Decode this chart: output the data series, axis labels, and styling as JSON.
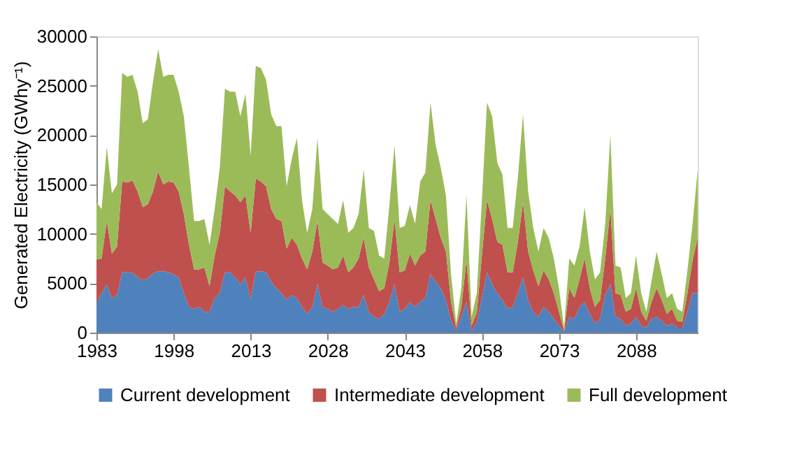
{
  "chart_data": {
    "type": "area",
    "stacked": true,
    "ylabel": "Generated Electricity (GWhy⁻¹)",
    "x": [
      1983,
      1984,
      1985,
      1986,
      1987,
      1988,
      1989,
      1990,
      1991,
      1992,
      1993,
      1994,
      1995,
      1996,
      1997,
      1998,
      1999,
      2000,
      2001,
      2002,
      2003,
      2004,
      2005,
      2006,
      2007,
      2008,
      2009,
      2010,
      2011,
      2012,
      2013,
      2014,
      2015,
      2016,
      2017,
      2018,
      2019,
      2020,
      2021,
      2022,
      2023,
      2024,
      2025,
      2026,
      2027,
      2028,
      2029,
      2030,
      2031,
      2032,
      2033,
      2034,
      2035,
      2036,
      2037,
      2038,
      2039,
      2040,
      2041,
      2042,
      2043,
      2044,
      2045,
      2046,
      2047,
      2048,
      2049,
      2050,
      2051,
      2052,
      2053,
      2054,
      2055,
      2056,
      2057,
      2058,
      2059,
      2060,
      2061,
      2062,
      2063,
      2064,
      2065,
      2066,
      2067,
      2068,
      2069,
      2070,
      2071,
      2072,
      2073,
      2074,
      2075,
      2076,
      2077,
      2078,
      2079,
      2080,
      2081,
      2082,
      2083,
      2084,
      2085,
      2086,
      2087,
      2088,
      2089,
      2090,
      2091,
      2092,
      2093,
      2094,
      2095,
      2096,
      2097,
      2098,
      2099,
      2100
    ],
    "series": [
      {
        "name": "Current development",
        "color": "#4f81bd",
        "values": [
          3000,
          4000,
          4900,
          3500,
          3800,
          6100,
          6100,
          6100,
          5600,
          5300,
          5500,
          6000,
          6200,
          6200,
          6100,
          5900,
          5600,
          4000,
          2600,
          2400,
          2600,
          2100,
          2100,
          3500,
          4000,
          6100,
          6100,
          5600,
          4900,
          5600,
          3300,
          6200,
          6200,
          6100,
          5200,
          4500,
          4000,
          3300,
          3800,
          3500,
          2600,
          1900,
          2600,
          4900,
          2600,
          2400,
          2100,
          2400,
          2800,
          2400,
          2600,
          2600,
          3800,
          2100,
          1600,
          1400,
          1900,
          3100,
          4900,
          2100,
          2400,
          3100,
          2600,
          3100,
          3500,
          5900,
          5200,
          4500,
          3300,
          1200,
          200,
          1600,
          3100,
          200,
          1000,
          3500,
          6100,
          4900,
          4000,
          3300,
          2400,
          2600,
          4000,
          5600,
          3300,
          2100,
          1600,
          2600,
          2100,
          1400,
          700,
          100,
          1600,
          1400,
          2600,
          3100,
          1900,
          900,
          1400,
          3800,
          4900,
          1600,
          1400,
          700,
          900,
          1600,
          700,
          500,
          1400,
          1600,
          1200,
          700,
          900,
          500,
          500,
          2100,
          4000,
          4000
        ]
      },
      {
        "name": "Intermediate development",
        "color": "#c0504d",
        "values": [
          4400,
          3500,
          6400,
          4500,
          4900,
          9200,
          9100,
          9300,
          8700,
          7400,
          7500,
          8300,
          10100,
          8800,
          9200,
          9300,
          8700,
          8000,
          6300,
          4000,
          3800,
          4500,
          2600,
          4300,
          6100,
          8700,
          8200,
          8300,
          8300,
          8300,
          6800,
          9400,
          9100,
          8700,
          7300,
          7000,
          7300,
          5200,
          5800,
          5400,
          4900,
          4500,
          5600,
          6400,
          4500,
          4400,
          4300,
          4200,
          5000,
          3700,
          4000,
          4900,
          5800,
          4500,
          3800,
          2800,
          2600,
          4000,
          6600,
          4000,
          3900,
          4900,
          4200,
          4700,
          4700,
          7500,
          6300,
          5100,
          4900,
          1900,
          300,
          1000,
          4200,
          500,
          1000,
          4300,
          7300,
          6600,
          5200,
          5600,
          3700,
          3500,
          5200,
          7600,
          4900,
          4200,
          3100,
          3700,
          3300,
          2600,
          1400,
          100,
          2900,
          2100,
          2800,
          4400,
          2600,
          1700,
          1900,
          3700,
          7600,
          2400,
          2400,
          1400,
          1500,
          2900,
          1400,
          700,
          1700,
          2900,
          2100,
          1200,
          1500,
          700,
          600,
          1900,
          3300,
          5600
        ]
      },
      {
        "name": "Full development",
        "color": "#9bbb59",
        "values": [
          5800,
          5000,
          7500,
          6100,
          6300,
          11000,
          10700,
          10700,
          10100,
          8500,
          8600,
          11100,
          12400,
          10900,
          10800,
          10900,
          10100,
          9900,
          7800,
          4900,
          4900,
          4900,
          4200,
          4700,
          6600,
          9900,
          10100,
          10500,
          8700,
          10300,
          7800,
          11400,
          11500,
          10800,
          9600,
          9400,
          9600,
          6300,
          8000,
          10800,
          5900,
          3700,
          4300,
          8400,
          5400,
          5200,
          5100,
          4400,
          5600,
          4000,
          4000,
          4500,
          6900,
          4000,
          4900,
          3600,
          3000,
          5800,
          7500,
          4500,
          4500,
          4900,
          4200,
          7500,
          8000,
          9900,
          7500,
          7100,
          5700,
          2800,
          400,
          1900,
          6600,
          900,
          2000,
          5600,
          9900,
          10400,
          8000,
          7100,
          4500,
          4500,
          6500,
          8900,
          6100,
          4300,
          3500,
          4300,
          4200,
          3500,
          2400,
          300,
          3000,
          3300,
          3300,
          5200,
          3700,
          2800,
          2800,
          3500,
          7500,
          2800,
          2800,
          1400,
          1600,
          3300,
          1900,
          900,
          2100,
          3700,
          2600,
          1600,
          1600,
          1200,
          1000,
          2300,
          3700,
          6900
        ]
      }
    ],
    "xlim": [
      1983,
      2100
    ],
    "xticks": [
      1983,
      1998,
      2013,
      2028,
      2043,
      2058,
      2073,
      2088
    ],
    "ylim": [
      0,
      30000
    ],
    "yticks": [
      0,
      5000,
      10000,
      15000,
      20000,
      25000,
      30000
    ],
    "grid": false,
    "legend": "bottom"
  }
}
